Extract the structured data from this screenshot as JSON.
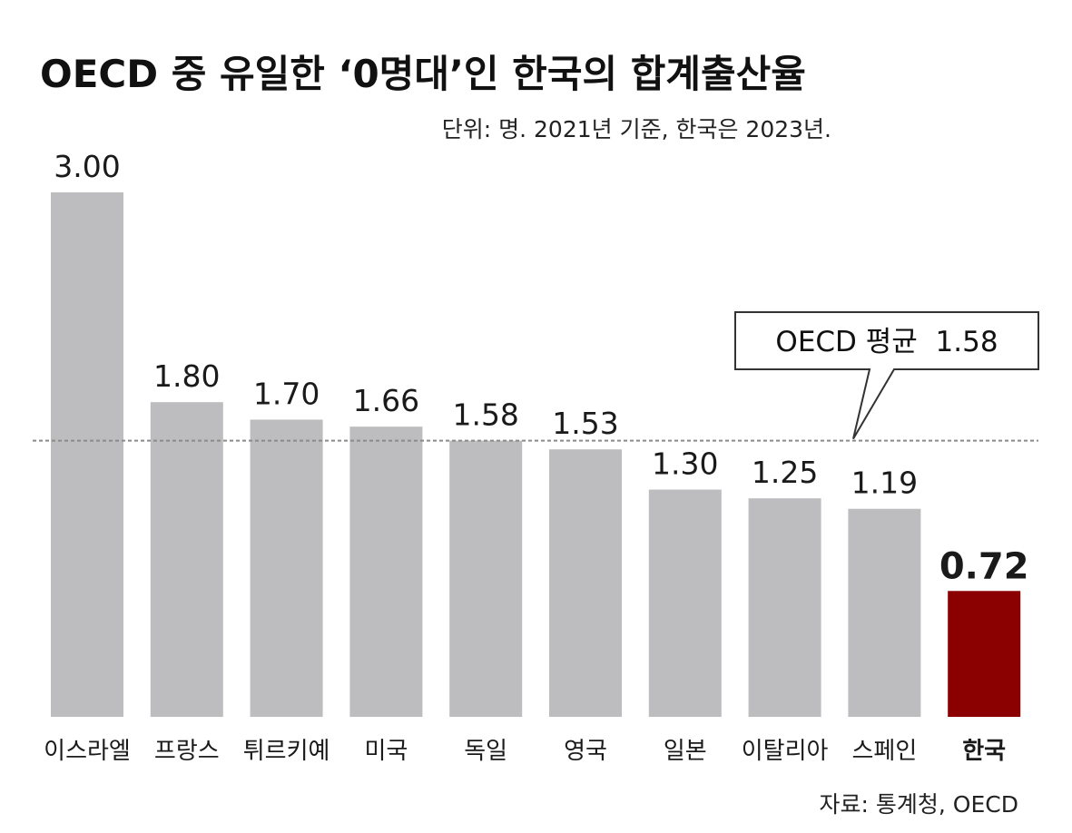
{
  "chart_data": {
    "type": "bar",
    "title": "OECD 중 유일한 ‘0명대’인 한국의 합계출산율",
    "subtitle": "단위: 명. 2021년 기준, 한국은 2023년.",
    "categories": [
      "이스라엘",
      "프랑스",
      "튀르키예",
      "미국",
      "독일",
      "영국",
      "일본",
      "이탈리아",
      "스페인",
      "한국"
    ],
    "values": [
      3.0,
      1.8,
      1.7,
      1.66,
      1.58,
      1.53,
      1.3,
      1.25,
      1.19,
      0.72
    ],
    "value_labels": [
      "3.00",
      "1.80",
      "1.70",
      "1.66",
      "1.58",
      "1.53",
      "1.30",
      "1.25",
      "1.19",
      "0.72"
    ],
    "highlight_category": "한국",
    "reference_line": {
      "label": "OECD 평균  1.58",
      "value": 1.58,
      "style": "dashed"
    },
    "ylim": [
      0,
      3.0
    ],
    "xlabel": "",
    "ylabel": "",
    "grid": false,
    "legend": "none",
    "source": "자료: 통계청, OECD",
    "colors": {
      "bar": "#bdbdbf",
      "highlight_bar": "#8b0000",
      "highlight_label": "#b01c1c",
      "reference_line": "#8a8a8a"
    }
  }
}
